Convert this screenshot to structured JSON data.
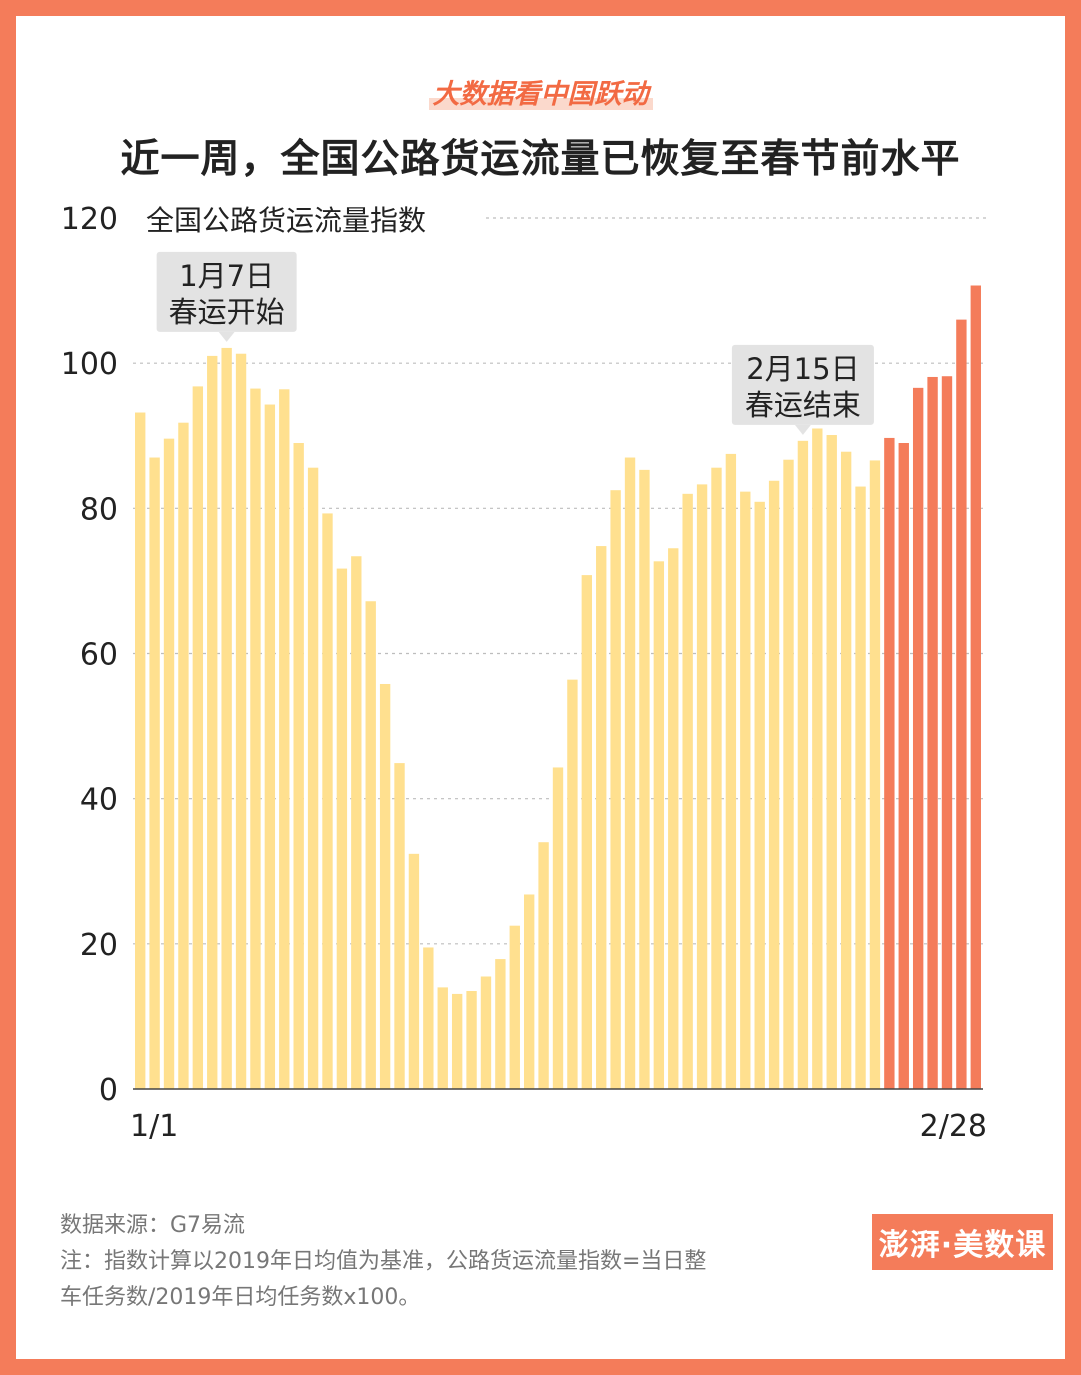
{
  "header": {
    "kicker": "大数据看中国跃动",
    "title": "近一周，全国公路货运流量已恢复至春节前水平"
  },
  "chart_data": {
    "type": "bar",
    "ylabel": "全国公路货运流量指数",
    "ylim": [
      0,
      120
    ],
    "yticks": [
      0,
      20,
      40,
      60,
      80,
      100,
      120
    ],
    "grid": true,
    "x_start_label": "1/1",
    "x_end_label": "2/28",
    "values": [
      93.2,
      87,
      89.6,
      91.8,
      96.8,
      101,
      102.1,
      101.3,
      96.5,
      94.3,
      96.4,
      89,
      85.6,
      79.3,
      71.7,
      73.4,
      67.2,
      55.8,
      44.9,
      32.4,
      19.5,
      14,
      13.1,
      13.5,
      15.5,
      17.9,
      22.5,
      26.8,
      34,
      44.3,
      56.4,
      70.8,
      74.8,
      82.5,
      87,
      85.3,
      72.7,
      74.5,
      82,
      83.3,
      85.6,
      87.5,
      82.3,
      80.9,
      83.8,
      86.7,
      89.3,
      91,
      90.1,
      87.8,
      83,
      86.6,
      89.7,
      89,
      96.6,
      98.1,
      98.2,
      106,
      110.7
    ],
    "highlight_last_n": 7,
    "colors": {
      "base": "#FFE08F",
      "highlight": "#F47C5A"
    },
    "annotations": [
      {
        "index": 6,
        "value": 102.1,
        "line1": "1月7日",
        "line2": "春运开始"
      },
      {
        "index": 46,
        "value": 89.3,
        "line1": "2月15日",
        "line2": "春运结束"
      }
    ]
  },
  "footer": {
    "source": "数据来源：G7易流",
    "note_line1": "注：指数计算以2019年日均值为基准，公路货运流量指数=当日整",
    "note_line2": "车任务数/2019年日均任务数x100。",
    "logo_text": "澎湃·美数课"
  }
}
